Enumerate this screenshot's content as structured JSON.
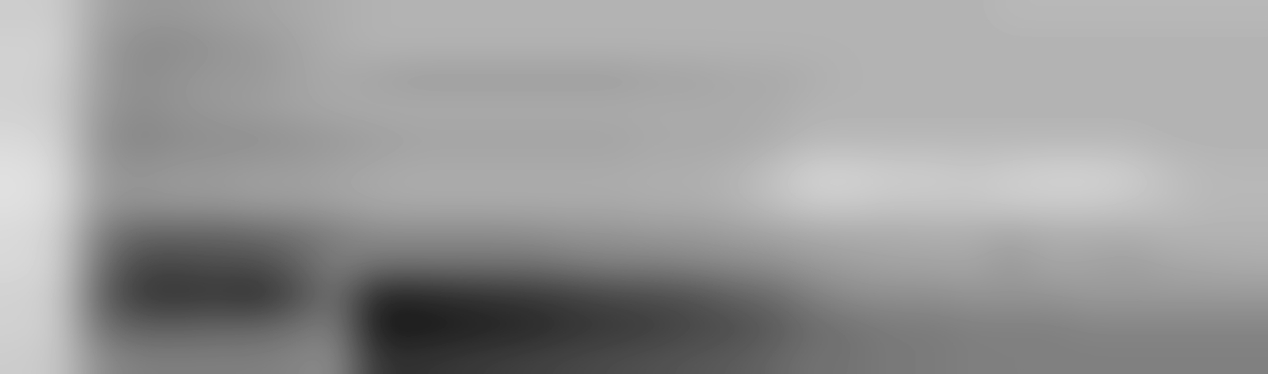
{
  "chart_data": {
    "type": "heatmap",
    "cells": [
      [
        0.2,
        0.2,
        0.35,
        0.4,
        0.4,
        0.38,
        0.36,
        0.34,
        0.32,
        0.3,
        0.3,
        0.3,
        0.3,
        0.3,
        0.3,
        0.3,
        0.3,
        0.3,
        0.3,
        0.3,
        0.3,
        0.3,
        0.3,
        0.3,
        0.3,
        0.28,
        0.28,
        0.28,
        0.28,
        0.28,
        0.28,
        0.28
      ],
      [
        0.18,
        0.18,
        0.38,
        0.45,
        0.45,
        0.42,
        0.4,
        0.36,
        0.32,
        0.3,
        0.3,
        0.3,
        0.3,
        0.3,
        0.3,
        0.3,
        0.3,
        0.3,
        0.3,
        0.3,
        0.3,
        0.3,
        0.3,
        0.3,
        0.3,
        0.3,
        0.3,
        0.3,
        0.3,
        0.3,
        0.3,
        0.3
      ],
      [
        0.18,
        0.2,
        0.38,
        0.45,
        0.42,
        0.4,
        0.4,
        0.36,
        0.34,
        0.36,
        0.38,
        0.38,
        0.38,
        0.38,
        0.38,
        0.38,
        0.36,
        0.36,
        0.34,
        0.34,
        0.32,
        0.3,
        0.3,
        0.3,
        0.3,
        0.3,
        0.3,
        0.3,
        0.3,
        0.3,
        0.3,
        0.3
      ],
      [
        0.18,
        0.2,
        0.4,
        0.45,
        0.42,
        0.4,
        0.38,
        0.36,
        0.34,
        0.33,
        0.33,
        0.33,
        0.33,
        0.33,
        0.33,
        0.33,
        0.33,
        0.33,
        0.33,
        0.33,
        0.3,
        0.3,
        0.3,
        0.3,
        0.3,
        0.3,
        0.3,
        0.3,
        0.3,
        0.3,
        0.3,
        0.3
      ],
      [
        0.15,
        0.18,
        0.42,
        0.48,
        0.45,
        0.44,
        0.44,
        0.42,
        0.4,
        0.38,
        0.36,
        0.36,
        0.36,
        0.36,
        0.36,
        0.36,
        0.34,
        0.34,
        0.34,
        0.32,
        0.28,
        0.28,
        0.28,
        0.28,
        0.28,
        0.28,
        0.28,
        0.28,
        0.28,
        0.3,
        0.3,
        0.3
      ],
      [
        0.12,
        0.15,
        0.4,
        0.42,
        0.4,
        0.4,
        0.38,
        0.38,
        0.36,
        0.34,
        0.33,
        0.33,
        0.33,
        0.33,
        0.33,
        0.33,
        0.32,
        0.32,
        0.3,
        0.25,
        0.18,
        0.18,
        0.2,
        0.2,
        0.22,
        0.2,
        0.18,
        0.18,
        0.2,
        0.25,
        0.28,
        0.28
      ],
      [
        0.12,
        0.15,
        0.4,
        0.42,
        0.4,
        0.4,
        0.38,
        0.38,
        0.36,
        0.34,
        0.33,
        0.33,
        0.33,
        0.33,
        0.33,
        0.33,
        0.32,
        0.32,
        0.3,
        0.25,
        0.2,
        0.2,
        0.22,
        0.22,
        0.22,
        0.2,
        0.2,
        0.2,
        0.22,
        0.25,
        0.28,
        0.28
      ],
      [
        0.15,
        0.18,
        0.5,
        0.6,
        0.6,
        0.6,
        0.58,
        0.55,
        0.5,
        0.45,
        0.45,
        0.45,
        0.45,
        0.44,
        0.42,
        0.42,
        0.4,
        0.4,
        0.38,
        0.36,
        0.34,
        0.33,
        0.33,
        0.32,
        0.32,
        0.35,
        0.32,
        0.32,
        0.32,
        0.3,
        0.3,
        0.3
      ],
      [
        0.15,
        0.18,
        0.55,
        0.72,
        0.72,
        0.7,
        0.7,
        0.62,
        0.5,
        0.55,
        0.55,
        0.55,
        0.55,
        0.55,
        0.52,
        0.5,
        0.5,
        0.48,
        0.46,
        0.44,
        0.4,
        0.38,
        0.36,
        0.36,
        0.35,
        0.4,
        0.35,
        0.36,
        0.38,
        0.35,
        0.34,
        0.33
      ],
      [
        0.18,
        0.2,
        0.6,
        0.78,
        0.8,
        0.78,
        0.82,
        0.7,
        0.55,
        0.85,
        0.85,
        0.82,
        0.8,
        0.78,
        0.75,
        0.72,
        0.7,
        0.68,
        0.62,
        0.58,
        0.5,
        0.45,
        0.44,
        0.44,
        0.42,
        0.42,
        0.42,
        0.4,
        0.4,
        0.4,
        0.4,
        0.4
      ],
      [
        0.18,
        0.2,
        0.55,
        0.62,
        0.62,
        0.6,
        0.6,
        0.55,
        0.5,
        0.9,
        0.9,
        0.88,
        0.86,
        0.84,
        0.8,
        0.78,
        0.76,
        0.72,
        0.7,
        0.65,
        0.58,
        0.55,
        0.52,
        0.52,
        0.5,
        0.5,
        0.5,
        0.48,
        0.48,
        0.48,
        0.48,
        0.48
      ],
      [
        0.2,
        0.22,
        0.45,
        0.5,
        0.5,
        0.5,
        0.5,
        0.48,
        0.45,
        0.8,
        0.8,
        0.78,
        0.76,
        0.74,
        0.72,
        0.7,
        0.68,
        0.66,
        0.64,
        0.6,
        0.55,
        0.55,
        0.52,
        0.52,
        0.5,
        0.5,
        0.5,
        0.5,
        0.5,
        0.5,
        0.5,
        0.5
      ]
    ],
    "color_range": [
      0,
      1
    ],
    "color": "gray_r",
    "tick_labels": false
  }
}
